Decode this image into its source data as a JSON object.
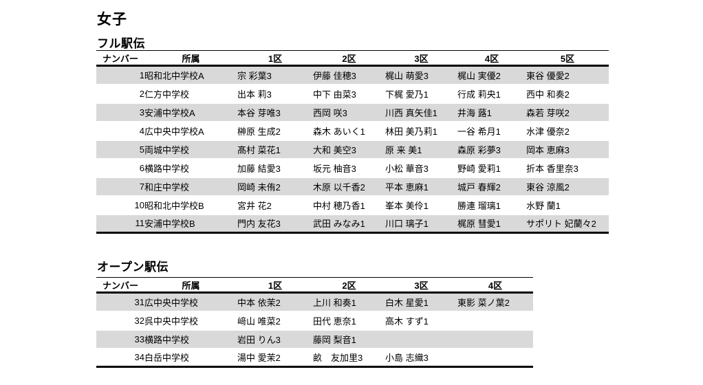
{
  "page": {
    "title": "女子"
  },
  "colors": {
    "row_shade": "#d9d9d9",
    "text": "#000000",
    "background": "#ffffff",
    "rule": "#000000"
  },
  "tables": [
    {
      "title": "フル駅伝",
      "headers": [
        "ナンバー",
        "所属",
        "1区",
        "2区",
        "3区",
        "4区",
        "5区"
      ],
      "rows": [
        {
          "number": "1",
          "school": "昭和北中学校A",
          "runners": [
            "宗 彩葉3",
            "伊藤 佳穂3",
            "梶山 萌愛3",
            "梶山 実優2",
            "東谷 優愛2"
          ]
        },
        {
          "number": "2",
          "school": "仁方中学校",
          "runners": [
            "出本 莉3",
            "中下 由菜3",
            "下梶 愛乃1",
            "行成 莉央1",
            "西中 和奏2"
          ]
        },
        {
          "number": "3",
          "school": "安浦中学校A",
          "runners": [
            "本谷 芽唯3",
            "西岡 咲3",
            "川西 真矢佳1",
            "井海 蕗1",
            "森若 芽咲2"
          ]
        },
        {
          "number": "4",
          "school": "広中央中学校A",
          "runners": [
            "榊原 生成2",
            "森木 あいく1",
            "林田 美乃莉1",
            "一谷 希月1",
            "水津 優奈2"
          ]
        },
        {
          "number": "5",
          "school": "両城中学校",
          "runners": [
            "髙村 菜花1",
            "大和 美空3",
            "原 来 美1",
            "森原 彩夢3",
            "岡本 恵麻3"
          ]
        },
        {
          "number": "6",
          "school": "横路中学校",
          "runners": [
            "加藤 結愛3",
            "坂元 柚音3",
            "小松 華音3",
            "野崎 愛莉1",
            "折本 香里奈3"
          ]
        },
        {
          "number": "7",
          "school": "和庄中学校",
          "runners": [
            "岡崎 未侑2",
            "木原 以千香2",
            "平本 恵麻1",
            "城戸 春輝2",
            "東谷 涼風2"
          ]
        },
        {
          "number": "10",
          "school": "昭和北中学校B",
          "runners": [
            "宮井 花2",
            "中村 穂乃香1",
            "峯本 美伶1",
            "勝連 瑠璃1",
            "水野 蘭1"
          ]
        },
        {
          "number": "11",
          "school": "安浦中学校B",
          "runners": [
            "門内 友花3",
            "武田 みなみ1",
            "川口 璃子1",
            "梶原 彗愛1",
            "サポリト 妃蘭々2"
          ]
        }
      ]
    },
    {
      "title": "オープン駅伝",
      "headers": [
        "ナンバー",
        "所属",
        "1区",
        "2区",
        "3区",
        "4区"
      ],
      "rows": [
        {
          "number": "31",
          "school": "広中央中学校",
          "runners": [
            "中本 依茉2",
            "上川 和奏1",
            "白木 星愛1",
            "東影 菜ノ葉2"
          ]
        },
        {
          "number": "32",
          "school": "呉中央中学校",
          "runners": [
            "﨑山 唯菜2",
            "田代 恵奈1",
            "高木 すず1",
            ""
          ]
        },
        {
          "number": "33",
          "school": "横路中学校",
          "runners": [
            "岩田 りん3",
            "藤岡 梨音1",
            "",
            ""
          ]
        },
        {
          "number": "34",
          "school": "白岳中学校",
          "runners": [
            "湯中 愛茉2",
            "畝　友加里3",
            "小島 志織3",
            ""
          ]
        }
      ]
    }
  ]
}
